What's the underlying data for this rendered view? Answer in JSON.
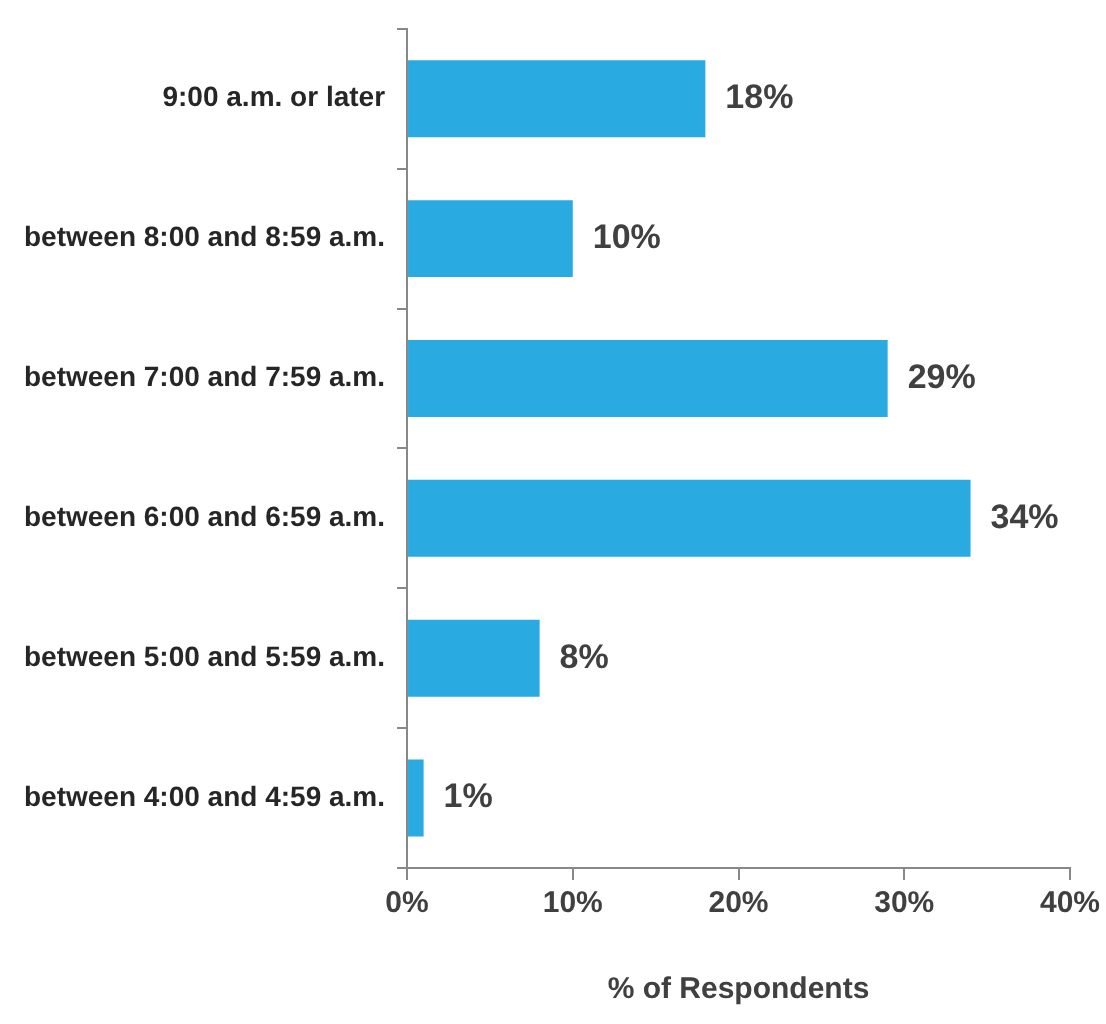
{
  "chart_data": {
    "type": "bar",
    "orientation": "horizontal",
    "xlabel": "% of Respondents",
    "categories": [
      "9:00 a.m. or later",
      "between 8:00 and 8:59 a.m.",
      "between 7:00 and 7:59 a.m.",
      "between 6:00 and 6:59 a.m.",
      "between 5:00 and 5:59 a.m.",
      "between 4:00 and 4:59 a.m."
    ],
    "values": [
      18,
      10,
      29,
      34,
      8,
      1
    ],
    "value_labels": [
      "18%",
      "10%",
      "29%",
      "34%",
      "8%",
      "1%"
    ],
    "color": "#29abe2",
    "xlim": [
      0,
      40
    ],
    "xticks": [
      {
        "value": 0,
        "label": "0%"
      },
      {
        "value": 10,
        "label": "10%"
      },
      {
        "value": 20,
        "label": "20%"
      },
      {
        "value": 30,
        "label": "30%"
      },
      {
        "value": 40,
        "label": "40%"
      }
    ],
    "grid": false,
    "legend": false
  }
}
